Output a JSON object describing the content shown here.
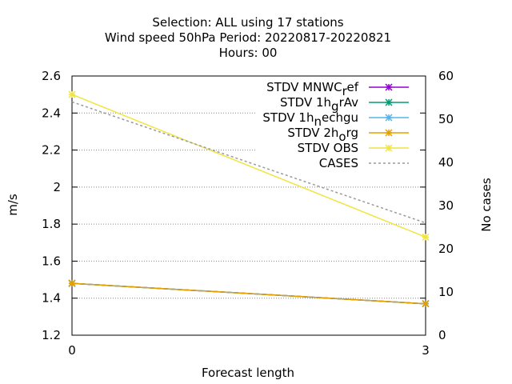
{
  "title_lines": [
    "Selection: ALL using    17 stations",
    "Wind speed 50hPa   Period: 20220817-20220821",
    "Hours:  00"
  ],
  "chart_data": {
    "type": "line",
    "xlabel": "Forecast length",
    "ylabel": "m/s",
    "y2label": "No cases",
    "x_ticks": [
      0,
      3
    ],
    "xlim": [
      0,
      3
    ],
    "ylim": [
      1.2,
      2.6
    ],
    "y_ticks": [
      "1.2",
      "1.4",
      "1.6",
      "1.8",
      "2",
      "2.2",
      "2.4",
      "2.6"
    ],
    "y2lim": [
      0,
      60
    ],
    "y2_ticks": [
      "0",
      "10",
      "20",
      "30",
      "40",
      "50",
      "60"
    ],
    "grid": "horizontal-dotted",
    "legend_position": "top-right",
    "legend": [
      {
        "label": "STDV MNWC_ref",
        "label_main": "STDV MNWC",
        "label_sub": "r",
        "label_rest": "ef",
        "color": "#9400d3",
        "style": "solid",
        "marker": "x"
      },
      {
        "label": "STDV 1h_grAv",
        "label_main": "STDV 1h",
        "label_sub": "g",
        "label_rest": "rAv",
        "color": "#009e73",
        "style": "solid",
        "marker": "x"
      },
      {
        "label": "STDV 1h_nechgu",
        "label_main": "STDV 1h",
        "label_sub": "n",
        "label_rest": "echgu",
        "color": "#56b4e9",
        "style": "solid",
        "marker": "x"
      },
      {
        "label": "STDV 2h_org",
        "label_main": "STDV 2h",
        "label_sub": "o",
        "label_rest": "rg",
        "color": "#e69f00",
        "style": "solid",
        "marker": "x"
      },
      {
        "label": "STDV OBS",
        "label_main": "STDV OBS",
        "label_sub": "",
        "label_rest": "",
        "color": "#f0e442",
        "style": "solid",
        "marker": "x"
      },
      {
        "label": "CASES",
        "label_main": "CASES",
        "label_sub": "",
        "label_rest": "",
        "color": "#999999",
        "style": "dashed",
        "marker": "none"
      }
    ],
    "series": [
      {
        "name": "STDV MNWC_ref",
        "axis": "y",
        "x": [
          0,
          3
        ],
        "values": [
          1.48,
          1.37
        ],
        "color": "#9400d3"
      },
      {
        "name": "STDV 1h_grAv",
        "axis": "y",
        "x": [
          0,
          3
        ],
        "values": [
          1.48,
          1.37
        ],
        "color": "#009e73"
      },
      {
        "name": "STDV 1h_nechgu",
        "axis": "y",
        "x": [
          0,
          3
        ],
        "values": [
          1.48,
          1.37
        ],
        "color": "#56b4e9"
      },
      {
        "name": "STDV 2h_org",
        "axis": "y",
        "x": [
          0,
          3
        ],
        "values": [
          1.48,
          1.37
        ],
        "color": "#e69f00"
      },
      {
        "name": "STDV OBS",
        "axis": "y",
        "x": [
          0,
          3
        ],
        "values": [
          2.5,
          1.73
        ],
        "color": "#f0e442"
      },
      {
        "name": "CASES",
        "axis": "y2",
        "x": [
          0,
          3
        ],
        "values": [
          54,
          26
        ],
        "color": "#999999",
        "dashed": true
      }
    ]
  }
}
